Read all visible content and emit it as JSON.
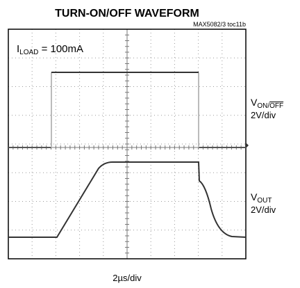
{
  "header": {
    "title": "TURN-ON/OFF WAVEFORM",
    "ref": "MAX5082/3 toc11b"
  },
  "annotation": {
    "symbol": "I",
    "subscript": "LOAD",
    "text": " = 100mA"
  },
  "channels": [
    {
      "symbol": "V",
      "subscript": "ON/",
      "subscript_bar": "OFF",
      "scale": "2V/div"
    },
    {
      "symbol": "V",
      "subscript": "OUT",
      "scale": "2V/div"
    }
  ],
  "time_scale": "2µs/div"
}
